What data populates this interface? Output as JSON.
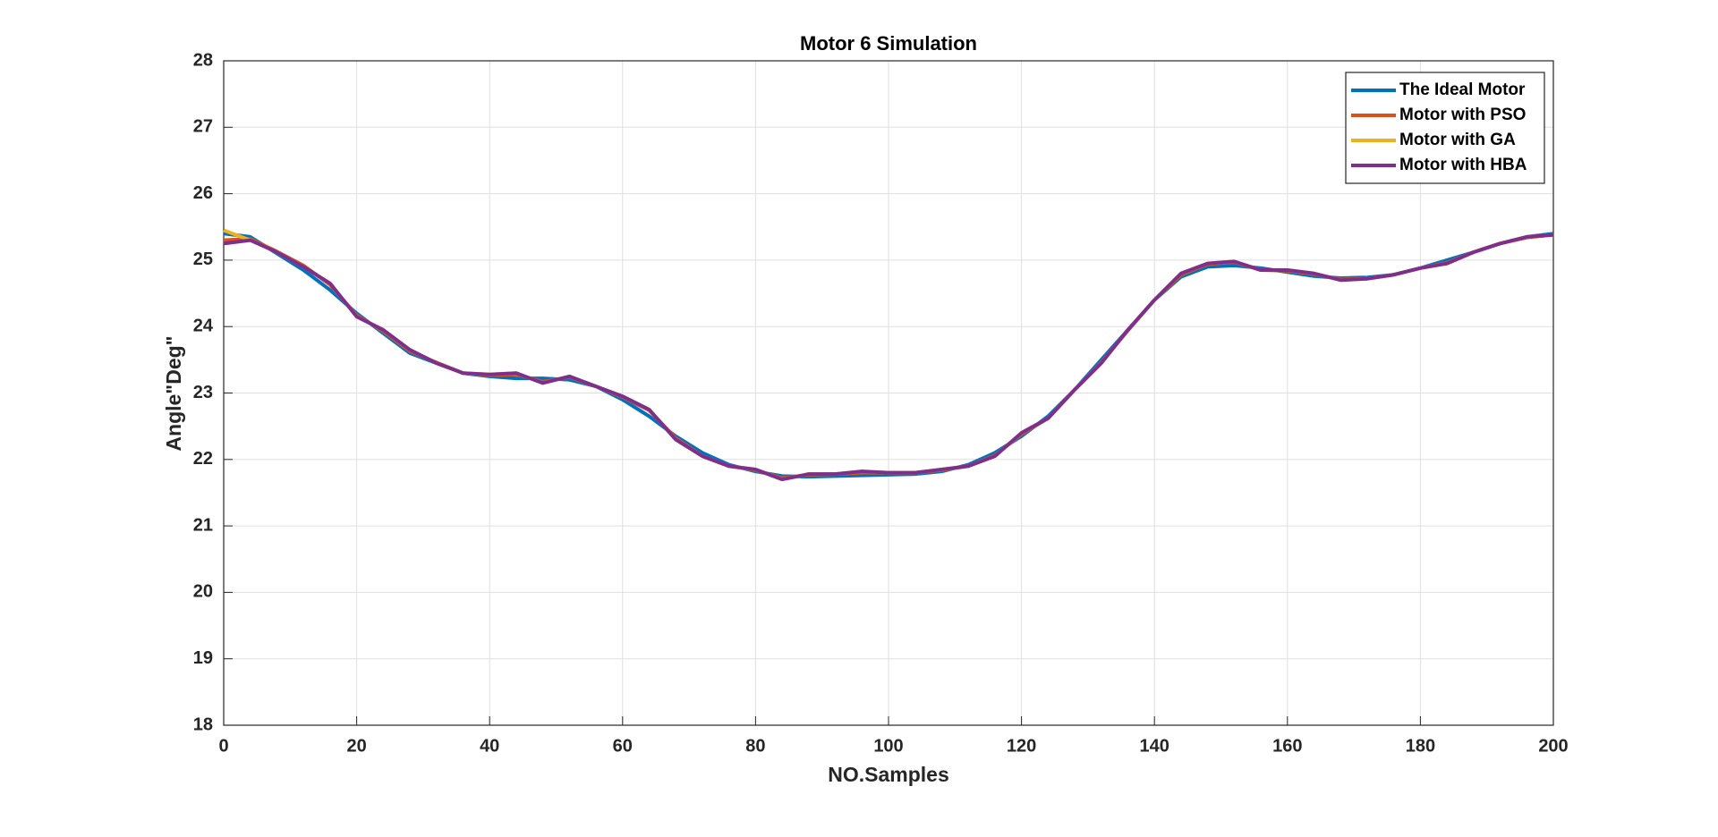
{
  "chart_data": {
    "type": "line",
    "title": "Motor 6 Simulation",
    "x_label": "NO.Samples",
    "y_label": "Angle\"Deg\"",
    "x": [
      0,
      4,
      8,
      12,
      16,
      20,
      24,
      28,
      32,
      36,
      40,
      44,
      48,
      52,
      56,
      60,
      64,
      68,
      72,
      76,
      80,
      84,
      88,
      92,
      96,
      100,
      104,
      108,
      112,
      116,
      120,
      124,
      128,
      132,
      136,
      140,
      144,
      148,
      152,
      156,
      160,
      164,
      168,
      172,
      176,
      180,
      184,
      188,
      192,
      196,
      200
    ],
    "series": [
      {
        "name": "The Ideal Motor",
        "color": "#0072bd",
        "width": 4,
        "values": [
          25.4,
          25.35,
          25.1,
          24.85,
          24.55,
          24.2,
          23.9,
          23.6,
          23.45,
          23.3,
          23.25,
          23.22,
          23.22,
          23.2,
          23.1,
          22.9,
          22.65,
          22.35,
          22.1,
          21.92,
          21.82,
          21.75,
          21.74,
          21.75,
          21.76,
          21.77,
          21.78,
          21.82,
          21.92,
          22.1,
          22.35,
          22.65,
          23.05,
          23.5,
          23.95,
          24.4,
          24.75,
          24.9,
          24.92,
          24.88,
          24.82,
          24.76,
          24.73,
          24.74,
          24.78,
          24.88,
          25.0,
          25.12,
          25.25,
          25.35,
          25.4
        ]
      },
      {
        "name": "Motor with PSO",
        "color": "#d95319",
        "width": 4,
        "values": [
          25.3,
          25.32,
          25.13,
          24.92,
          24.63,
          24.17,
          23.93,
          23.63,
          23.46,
          23.3,
          23.27,
          23.28,
          23.17,
          23.24,
          23.1,
          22.94,
          22.74,
          22.32,
          22.05,
          21.9,
          21.84,
          21.72,
          21.77,
          21.78,
          21.8,
          21.8,
          21.8,
          21.84,
          21.9,
          22.06,
          22.38,
          22.62,
          23.05,
          23.46,
          23.94,
          24.4,
          24.78,
          24.94,
          24.97,
          24.85,
          24.84,
          24.79,
          24.71,
          24.72,
          24.78,
          24.88,
          24.96,
          25.12,
          25.25,
          25.34,
          25.38
        ]
      },
      {
        "name": "Motor with GA",
        "color": "#edb120",
        "width": 4,
        "values": [
          25.45,
          25.3,
          25.12,
          24.9,
          24.65,
          24.15,
          23.95,
          23.65,
          23.45,
          23.3,
          23.28,
          23.3,
          23.15,
          23.25,
          23.1,
          22.95,
          22.75,
          22.3,
          22.05,
          21.9,
          21.85,
          21.7,
          21.78,
          21.78,
          21.82,
          21.8,
          21.8,
          21.85,
          21.9,
          22.05,
          22.4,
          22.62,
          23.05,
          23.45,
          23.95,
          24.4,
          24.8,
          24.95,
          24.98,
          24.85,
          24.85,
          24.8,
          24.7,
          24.72,
          24.78,
          24.88,
          24.95,
          25.12,
          25.25,
          25.35,
          25.38
        ]
      },
      {
        "name": "Motor with HBA",
        "color": "#7e2f8e",
        "width": 4,
        "values": [
          25.25,
          25.3,
          25.12,
          24.9,
          24.65,
          24.15,
          23.95,
          23.65,
          23.45,
          23.3,
          23.28,
          23.3,
          23.15,
          23.25,
          23.1,
          22.95,
          22.75,
          22.3,
          22.05,
          21.9,
          21.85,
          21.7,
          21.78,
          21.78,
          21.82,
          21.8,
          21.8,
          21.85,
          21.9,
          22.05,
          22.4,
          22.62,
          23.05,
          23.45,
          23.95,
          24.4,
          24.8,
          24.95,
          24.98,
          24.85,
          24.85,
          24.8,
          24.7,
          24.72,
          24.78,
          24.88,
          24.95,
          25.12,
          25.25,
          25.35,
          25.38
        ]
      }
    ],
    "xlim": [
      0,
      200
    ],
    "ylim": [
      18,
      28
    ],
    "xticks": [
      0,
      20,
      40,
      60,
      80,
      100,
      120,
      140,
      160,
      180,
      200
    ],
    "yticks": [
      18,
      19,
      20,
      21,
      22,
      23,
      24,
      25,
      26,
      27,
      28
    ],
    "grid": true,
    "legend": "upper right"
  }
}
